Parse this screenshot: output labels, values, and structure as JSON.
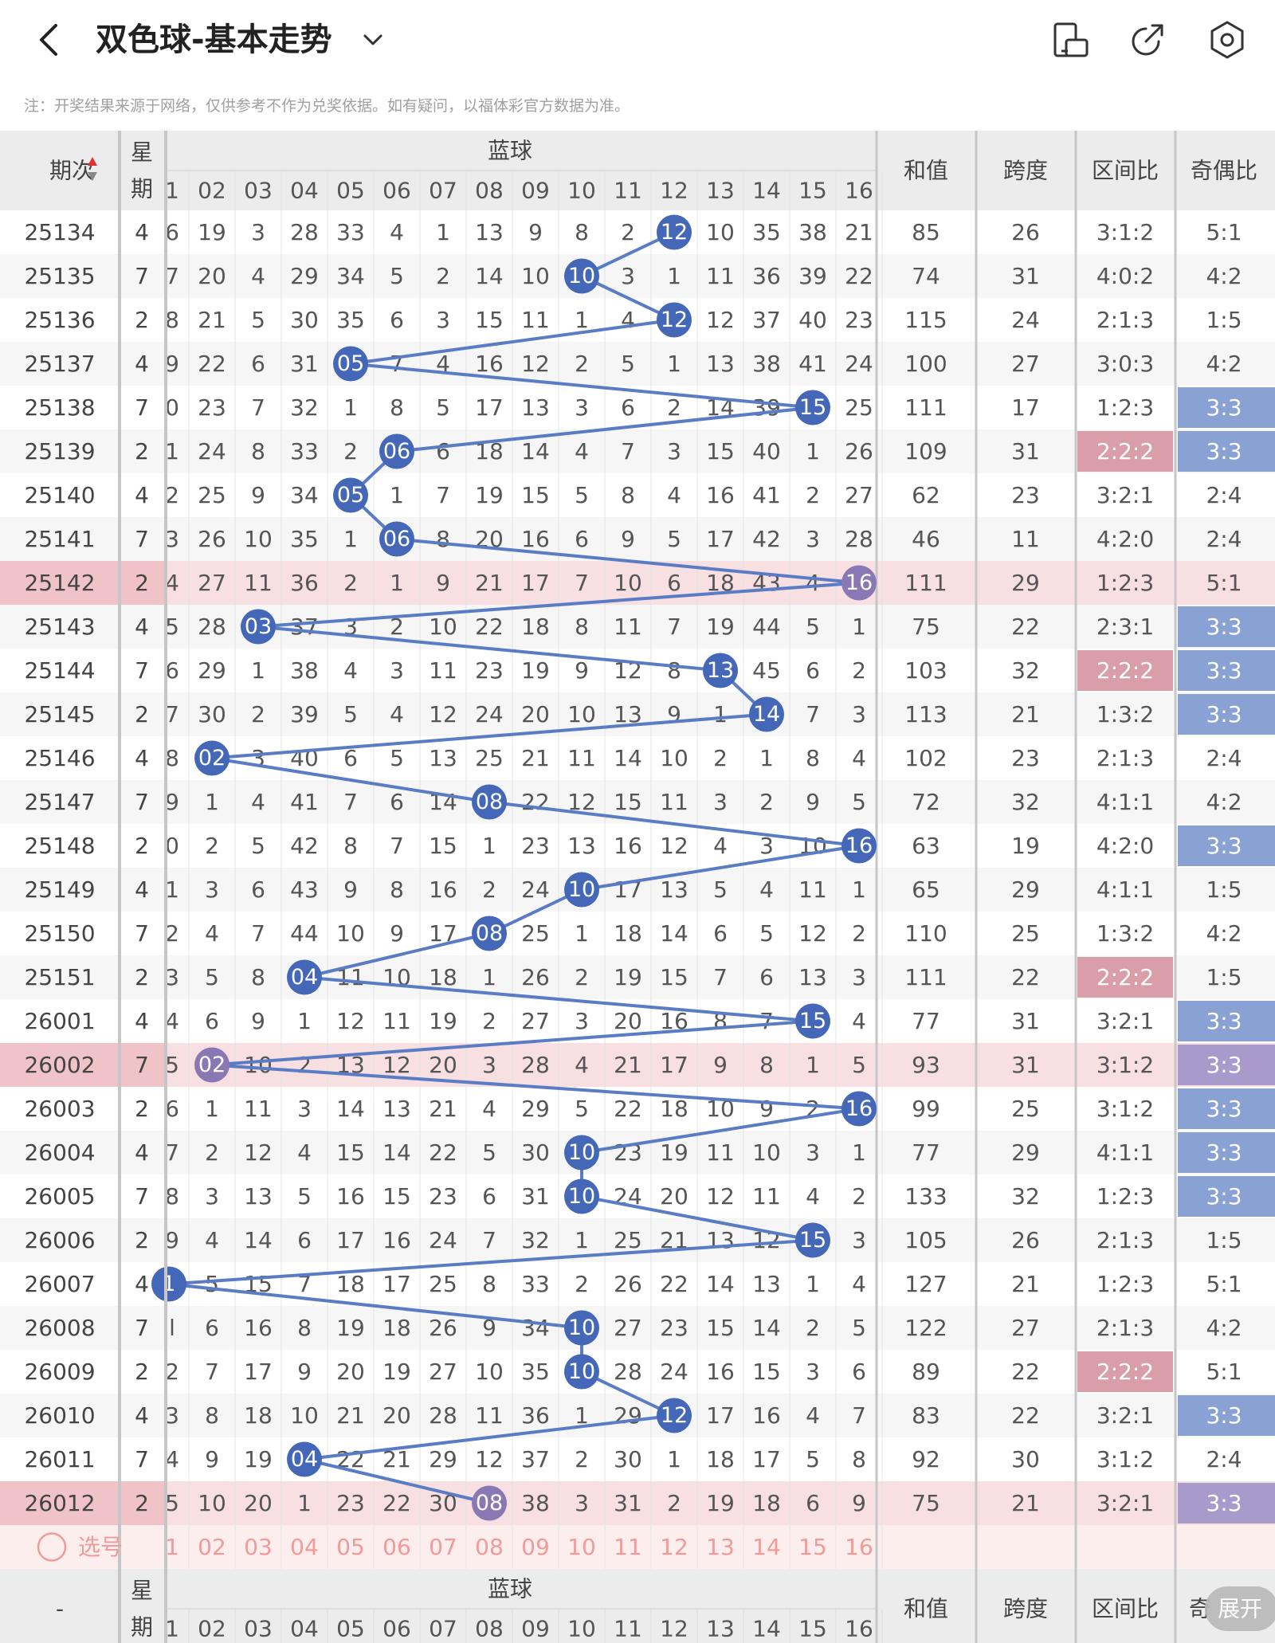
{
  "header": {
    "title": "双色球-基本走势",
    "icons": [
      "back-arrow-icon",
      "chevron-down-icon",
      "phone-rotate-icon",
      "share-icon",
      "settings-icon"
    ]
  },
  "note": "注：开奖结果来源于网络，仅供参考不作为兑奖依据。如有疑问，以福体彩官方数据为准。",
  "table": {
    "headers": {
      "period": "期次",
      "weekday_top": "星",
      "weekday_bottom": "期",
      "blue_group": "蓝球",
      "sum": "和值",
      "span": "跨度",
      "zone_ratio": "区间比",
      "odd_even": "奇偶比"
    },
    "blue_columns": [
      "1",
      "02",
      "03",
      "04",
      "05",
      "06",
      "07",
      "08",
      "09",
      "10",
      "11",
      "12",
      "13",
      "14",
      "15",
      "16"
    ],
    "first_column_partials": [
      "6",
      "7",
      "8",
      "9",
      "0",
      "1",
      "2",
      "3",
      "4",
      "5",
      "6",
      "7",
      "8",
      "9",
      "0",
      "1",
      "2",
      "3",
      "4",
      "5",
      "6",
      "7",
      "8",
      "9",
      "1",
      "l",
      "2",
      "3",
      "4",
      "5"
    ],
    "rows": [
      {
        "period": "25134",
        "wd": "4",
        "blue": 12,
        "misses": [
          19,
          3,
          28,
          33,
          4,
          1,
          13,
          9,
          8,
          2,
          0,
          10,
          35,
          38,
          21
        ],
        "sum": "85",
        "span": "26",
        "zone": "3:1:2",
        "oe": "5:1"
      },
      {
        "period": "25135",
        "wd": "7",
        "blue": 10,
        "misses": [
          20,
          4,
          29,
          34,
          5,
          2,
          14,
          10,
          0,
          3,
          1,
          11,
          36,
          39,
          22
        ],
        "sum": "74",
        "span": "31",
        "zone": "4:0:2",
        "oe": "4:2"
      },
      {
        "period": "25136",
        "wd": "2",
        "blue": 12,
        "misses": [
          21,
          5,
          30,
          35,
          6,
          3,
          15,
          11,
          1,
          4,
          0,
          12,
          37,
          40,
          23
        ],
        "sum": "115",
        "span": "24",
        "zone": "2:1:3",
        "oe": "1:5"
      },
      {
        "period": "25137",
        "wd": "4",
        "blue": 5,
        "misses": [
          22,
          6,
          31,
          0,
          7,
          4,
          16,
          12,
          2,
          5,
          1,
          13,
          38,
          41,
          24
        ],
        "sum": "100",
        "span": "27",
        "zone": "3:0:3",
        "oe": "4:2"
      },
      {
        "period": "25138",
        "wd": "7",
        "blue": 15,
        "misses": [
          23,
          7,
          32,
          1,
          8,
          5,
          17,
          13,
          3,
          6,
          2,
          14,
          39,
          0,
          25
        ],
        "sum": "111",
        "span": "17",
        "zone": "1:2:3",
        "oe": "3:3",
        "oe_hl": "blue"
      },
      {
        "period": "25139",
        "wd": "2",
        "blue": 6,
        "misses": [
          24,
          8,
          33,
          2,
          0,
          6,
          18,
          14,
          4,
          7,
          3,
          15,
          40,
          1,
          26
        ],
        "sum": "109",
        "span": "31",
        "zone": "2:2:2",
        "zone_hl": true,
        "oe": "3:3",
        "oe_hl": "blue"
      },
      {
        "period": "25140",
        "wd": "4",
        "blue": 5,
        "misses": [
          25,
          9,
          34,
          0,
          1,
          7,
          19,
          15,
          5,
          8,
          4,
          16,
          41,
          2,
          27
        ],
        "sum": "62",
        "span": "23",
        "zone": "3:2:1",
        "oe": "2:4"
      },
      {
        "period": "25141",
        "wd": "7",
        "blue": 6,
        "misses": [
          26,
          10,
          35,
          1,
          0,
          8,
          20,
          16,
          6,
          9,
          5,
          17,
          42,
          3,
          28
        ],
        "sum": "46",
        "span": "11",
        "zone": "4:2:0",
        "oe": "2:4"
      },
      {
        "period": "25142",
        "wd": "2",
        "blue": 16,
        "misses": [
          27,
          11,
          36,
          2,
          1,
          9,
          21,
          17,
          7,
          10,
          6,
          18,
          43,
          4,
          0
        ],
        "sum": "111",
        "span": "29",
        "zone": "1:2:3",
        "oe": "5:1",
        "row_hl": true
      },
      {
        "period": "25143",
        "wd": "4",
        "blue": 3,
        "misses": [
          28,
          0,
          37,
          3,
          2,
          10,
          22,
          18,
          8,
          11,
          7,
          19,
          44,
          5,
          1
        ],
        "sum": "75",
        "span": "22",
        "zone": "2:3:1",
        "oe": "3:3",
        "oe_hl": "blue"
      },
      {
        "period": "25144",
        "wd": "7",
        "blue": 13,
        "misses": [
          29,
          1,
          38,
          4,
          3,
          11,
          23,
          19,
          9,
          12,
          8,
          0,
          45,
          6,
          2
        ],
        "sum": "103",
        "span": "32",
        "zone": "2:2:2",
        "zone_hl": true,
        "oe": "3:3",
        "oe_hl": "blue"
      },
      {
        "period": "25145",
        "wd": "2",
        "blue": 14,
        "misses": [
          30,
          2,
          39,
          5,
          4,
          12,
          24,
          20,
          10,
          13,
          9,
          1,
          0,
          7,
          3
        ],
        "sum": "113",
        "span": "21",
        "zone": "1:3:2",
        "oe": "3:3",
        "oe_hl": "blue"
      },
      {
        "period": "25146",
        "wd": "4",
        "blue": 2,
        "misses": [
          0,
          3,
          40,
          6,
          5,
          13,
          25,
          21,
          11,
          14,
          10,
          2,
          1,
          8,
          4
        ],
        "sum": "102",
        "span": "23",
        "zone": "2:1:3",
        "oe": "2:4"
      },
      {
        "period": "25147",
        "wd": "7",
        "blue": 8,
        "misses": [
          1,
          4,
          41,
          7,
          6,
          14,
          0,
          22,
          12,
          15,
          11,
          3,
          2,
          9,
          5
        ],
        "sum": "72",
        "span": "32",
        "zone": "4:1:1",
        "oe": "4:2"
      },
      {
        "period": "25148",
        "wd": "2",
        "blue": 16,
        "misses": [
          2,
          5,
          42,
          8,
          7,
          15,
          1,
          23,
          13,
          16,
          12,
          4,
          3,
          10,
          0
        ],
        "sum": "63",
        "span": "19",
        "zone": "4:2:0",
        "oe": "3:3",
        "oe_hl": "blue"
      },
      {
        "period": "25149",
        "wd": "4",
        "blue": 10,
        "misses": [
          3,
          6,
          43,
          9,
          8,
          16,
          2,
          24,
          0,
          17,
          13,
          5,
          4,
          11,
          1
        ],
        "sum": "65",
        "span": "29",
        "zone": "4:1:1",
        "oe": "1:5"
      },
      {
        "period": "25150",
        "wd": "7",
        "blue": 8,
        "misses": [
          4,
          7,
          44,
          10,
          9,
          17,
          0,
          25,
          1,
          18,
          14,
          6,
          5,
          12,
          2
        ],
        "sum": "110",
        "span": "25",
        "zone": "1:3:2",
        "oe": "4:2"
      },
      {
        "period": "25151",
        "wd": "2",
        "blue": 4,
        "misses": [
          5,
          8,
          0,
          11,
          10,
          18,
          1,
          26,
          2,
          19,
          15,
          7,
          6,
          13,
          3
        ],
        "sum": "111",
        "span": "22",
        "zone": "2:2:2",
        "zone_hl": true,
        "oe": "1:5"
      },
      {
        "period": "26001",
        "wd": "4",
        "blue": 15,
        "misses": [
          6,
          9,
          1,
          12,
          11,
          19,
          2,
          27,
          3,
          20,
          16,
          8,
          7,
          0,
          4
        ],
        "sum": "77",
        "span": "31",
        "zone": "3:2:1",
        "oe": "3:3",
        "oe_hl": "blue"
      },
      {
        "period": "26002",
        "wd": "7",
        "blue": 2,
        "misses": [
          0,
          10,
          2,
          13,
          12,
          20,
          3,
          28,
          4,
          21,
          17,
          9,
          8,
          1,
          5
        ],
        "sum": "93",
        "span": "31",
        "zone": "3:1:2",
        "oe": "3:3",
        "oe_hl": "purple",
        "row_hl": true
      },
      {
        "period": "26003",
        "wd": "2",
        "blue": 16,
        "misses": [
          1,
          11,
          3,
          14,
          13,
          21,
          4,
          29,
          5,
          22,
          18,
          10,
          9,
          2,
          0
        ],
        "sum": "99",
        "span": "25",
        "zone": "3:1:2",
        "oe": "3:3",
        "oe_hl": "blue"
      },
      {
        "period": "26004",
        "wd": "4",
        "blue": 10,
        "misses": [
          2,
          12,
          4,
          15,
          14,
          22,
          5,
          30,
          0,
          23,
          19,
          11,
          10,
          3,
          1
        ],
        "sum": "77",
        "span": "29",
        "zone": "4:1:1",
        "oe": "3:3",
        "oe_hl": "blue"
      },
      {
        "period": "26005",
        "wd": "7",
        "blue": 10,
        "misses": [
          3,
          13,
          5,
          16,
          15,
          23,
          6,
          31,
          0,
          24,
          20,
          12,
          11,
          4,
          2
        ],
        "sum": "133",
        "span": "32",
        "zone": "1:2:3",
        "oe": "3:3",
        "oe_hl": "blue"
      },
      {
        "period": "26006",
        "wd": "2",
        "blue": 15,
        "misses": [
          4,
          14,
          6,
          17,
          16,
          24,
          7,
          32,
          1,
          25,
          21,
          13,
          12,
          0,
          3
        ],
        "sum": "105",
        "span": "26",
        "zone": "2:1:3",
        "oe": "1:5"
      },
      {
        "period": "26007",
        "wd": "4",
        "blue": 1,
        "misses": [
          5,
          15,
          7,
          18,
          17,
          25,
          8,
          33,
          2,
          26,
          22,
          14,
          13,
          1,
          4
        ],
        "sum": "127",
        "span": "21",
        "zone": "1:2:3",
        "oe": "5:1"
      },
      {
        "period": "26008",
        "wd": "7",
        "blue": 10,
        "misses": [
          6,
          16,
          8,
          19,
          18,
          26,
          9,
          34,
          0,
          27,
          23,
          15,
          14,
          2,
          5
        ],
        "sum": "122",
        "span": "27",
        "zone": "2:1:3",
        "oe": "4:2"
      },
      {
        "period": "26009",
        "wd": "2",
        "blue": 10,
        "misses": [
          7,
          17,
          9,
          20,
          19,
          27,
          10,
          35,
          0,
          28,
          24,
          16,
          15,
          3,
          6
        ],
        "sum": "89",
        "span": "22",
        "zone": "2:2:2",
        "zone_hl": true,
        "oe": "5:1"
      },
      {
        "period": "26010",
        "wd": "4",
        "blue": 12,
        "misses": [
          8,
          18,
          10,
          21,
          20,
          28,
          11,
          36,
          1,
          29,
          0,
          17,
          16,
          4,
          7
        ],
        "sum": "83",
        "span": "22",
        "zone": "3:2:1",
        "oe": "3:3",
        "oe_hl": "blue"
      },
      {
        "period": "26011",
        "wd": "7",
        "blue": 4,
        "misses": [
          9,
          19,
          0,
          22,
          21,
          29,
          12,
          37,
          2,
          30,
          1,
          18,
          17,
          5,
          8
        ],
        "sum": "92",
        "span": "30",
        "zone": "3:1:2",
        "oe": "2:4"
      },
      {
        "period": "26012",
        "wd": "2",
        "blue": 8,
        "misses": [
          10,
          20,
          1,
          23,
          22,
          30,
          0,
          38,
          3,
          31,
          2,
          19,
          18,
          6,
          9
        ],
        "sum": "75",
        "span": "21",
        "zone": "3:2:1",
        "oe": "3:3",
        "oe_hl": "purple",
        "row_hl": true
      }
    ]
  },
  "select_row": {
    "label": "选号",
    "first": "1"
  },
  "footer_header": {
    "period": "-",
    "oe_partial": "奇"
  },
  "expand_button": "展开",
  "colors": {
    "ball_blue": "#4467b8",
    "ball_purple": "#8a78b4",
    "line_blue": "#5a7cc5",
    "row_pink": "#f7dfe2",
    "zone_pink": "#d99ea7",
    "oe_blue": "#8aa1d4",
    "oe_purple": "#a89bcb",
    "header_bg": "#ececec",
    "select_text": "#f29a9a"
  }
}
